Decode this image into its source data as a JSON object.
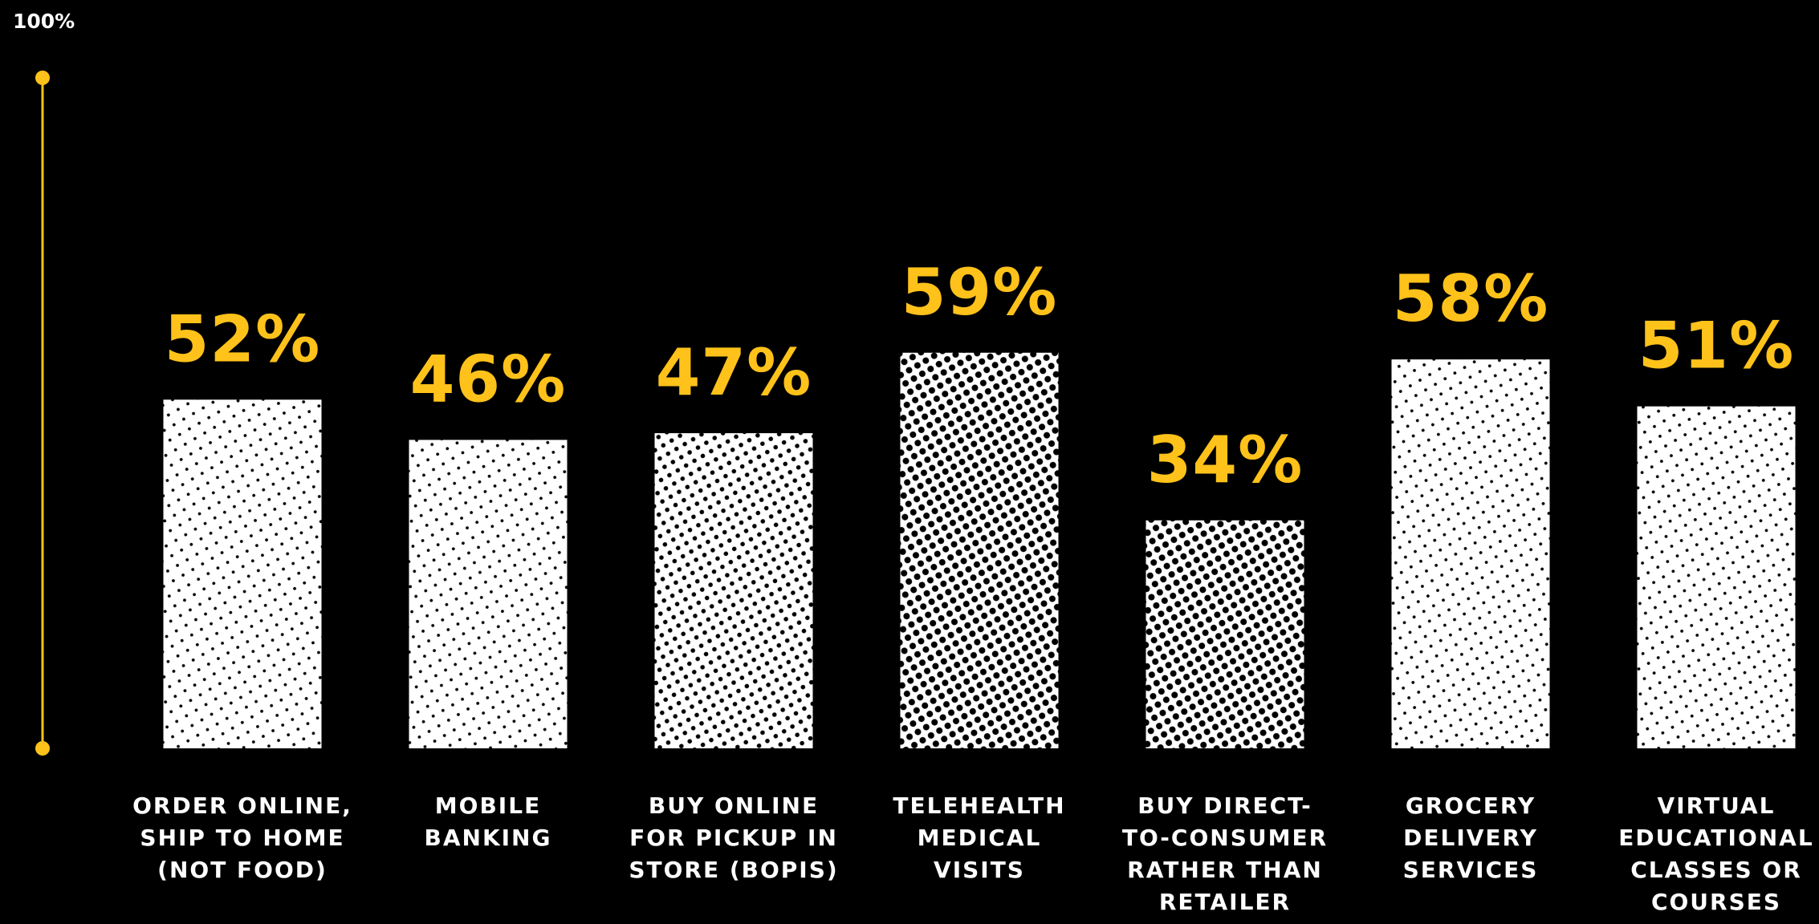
{
  "chart_data": {
    "type": "bar",
    "ylim": [
      0,
      100
    ],
    "y_axis_top_label": "100%",
    "grid": false,
    "categories": [
      [
        "ORDER ONLINE,",
        "SHIP TO HOME",
        "(NOT FOOD)"
      ],
      [
        "MOBILE",
        "BANKING"
      ],
      [
        "BUY ONLINE",
        "FOR PICKUP IN",
        "STORE (BOPIS)"
      ],
      [
        "TELEHEALTH",
        "MEDICAL",
        "VISITS"
      ],
      [
        "BUY DIRECT-",
        "TO-CONSUMER",
        "RATHER THAN",
        "RETAILER"
      ],
      [
        "GROCERY",
        "DELIVERY",
        "SERVICES"
      ],
      [
        "VIRTUAL",
        "EDUCATIONAL",
        "CLASSES OR",
        "COURSES"
      ]
    ],
    "values": [
      52,
      46,
      47,
      59,
      34,
      58,
      51
    ],
    "value_labels": [
      "52%",
      "46%",
      "47%",
      "59%",
      "34%",
      "58%",
      "51%"
    ],
    "patterns": [
      "halftone-fine",
      "halftone-fine",
      "halftone-medium",
      "halftone-dense",
      "halftone-dense",
      "halftone-fine",
      "halftone-fine"
    ],
    "colors": {
      "background": "#000000",
      "bar": "#ffffff",
      "dots": "#000000",
      "accent": "#ffc21a",
      "label": "#ffffff"
    }
  }
}
